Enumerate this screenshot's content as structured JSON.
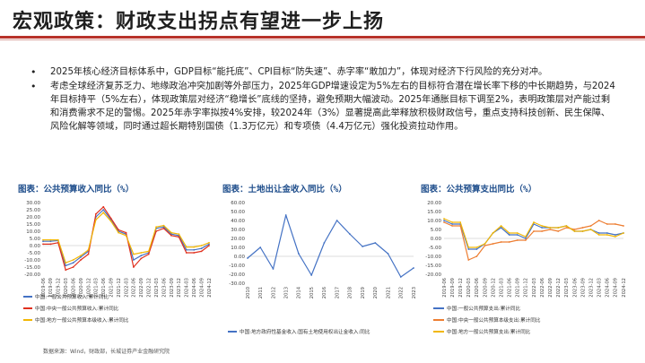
{
  "header": {
    "title": "宏观政策：财政支出拐点有望进一步上扬"
  },
  "bullets": [
    "2025年核心经济目标体系中，GDP目标“能托底”、CPI目标“防失速”、赤字率“敢加力”，体现对经济下行风险的充分对冲。",
    "考虑全球经济复苏乏力、地缘政治冲突加剧等外部压力，2025年GDP增速设定为5%左右的目标符合潜在增长率下移的中长期趋势，与2024年目标持平（5%左右），体现政策层对经济“稳增长”底线的坚持，避免预期大幅波动。2025年通胀目标下调至2%，表明政策层对产能过剩和消费需求不足的警惕。2025年赤字率拟按4%安排，较2024年（3%）显著提高此举释放积极财政信号，重点支持科技创新、民生保障、风险化解等领域，同时通过超长期特别国债（1.3万亿元）和专项债（4.4万亿元）强化投资拉动作用。"
  ],
  "footnote": "数据来源：Wind，财政部，长城证券产业金融研究院",
  "colors": {
    "accent": "#b8322a",
    "blue": "#4472c4",
    "red": "#e0301e",
    "orange": "#ed7d31",
    "yellow": "#f2b705"
  },
  "chart_data": [
    {
      "type": "line",
      "title": "图表：公共预算收入同比（%）",
      "ylim": [
        -20,
        30
      ],
      "y_ticks": [
        "30.00",
        "25.00",
        "20.00",
        "15.00",
        "10.00",
        "5.00",
        "0.00",
        "-5.00",
        "-10.00",
        "-15.00",
        "-20.00"
      ],
      "x_ticks": [
        "2019-06",
        "2019-09",
        "2019-12",
        "2020-03",
        "2020-06",
        "2020-09",
        "2020-12",
        "2021-03",
        "2021-06",
        "2021-09",
        "2021-12",
        "2022-03",
        "2022-06",
        "2022-09",
        "2022-12",
        "2023-03",
        "2023-06",
        "2023-09",
        "2023-12",
        "2024-03",
        "2024-06",
        "2024-09",
        "2024-12"
      ],
      "series": [
        {
          "name": "中国:一般公共预算收入:累计同比",
          "color": "#4472c4",
          "values": [
            3,
            3,
            3.5,
            -14,
            -12,
            -8,
            -4,
            20,
            25,
            18,
            10,
            8,
            -10,
            -7,
            -5,
            12,
            13,
            8,
            7,
            -3,
            -3,
            -2,
            1
          ]
        },
        {
          "name": "中国:中央一般公共预算收入:累计同比",
          "color": "#e0301e",
          "values": [
            1,
            1,
            2,
            -17,
            -15,
            -10,
            -6,
            22,
            27,
            19,
            11,
            9,
            -15,
            -9,
            -6,
            10,
            12,
            7,
            6,
            -5,
            -5,
            -4,
            0
          ]
        },
        {
          "name": "中国:地方一般公共预算本级收入:累计同比",
          "color": "#f2b705",
          "values": [
            4,
            4,
            4,
            -12,
            -10,
            -7,
            -3,
            18,
            23,
            17,
            9,
            7,
            -6,
            -5,
            -4,
            13,
            14,
            9,
            8,
            -1,
            -1,
            0,
            2
          ]
        }
      ]
    },
    {
      "type": "line",
      "title": "图表：土地出让金收入同比（%）",
      "ylim": [
        -30,
        60
      ],
      "y_ticks": [
        "60.00",
        "50.00",
        "40.00",
        "30.00",
        "20.00",
        "10.00",
        "0.00",
        "-10.00",
        "-20.00",
        "-30.00"
      ],
      "x_ticks": [
        "2010",
        "2011",
        "2012",
        "2013",
        "2014",
        "2015",
        "2016",
        "2017",
        "2018",
        "2019",
        "2020",
        "2021",
        "2022",
        "2023"
      ],
      "series": [
        {
          "name": "中国:地方政府性基金收入:国有土地使用权出让金收入:同比",
          "color": "#4472c4",
          "values": [
            -2,
            10,
            -14,
            46,
            3,
            -21,
            15,
            40,
            25,
            11,
            15,
            3,
            -23,
            -13
          ]
        }
      ]
    },
    {
      "type": "line",
      "title": "图表：公共预算支出同比（%）",
      "ylim": [
        -20,
        20
      ],
      "y_ticks": [
        "20.00",
        "15.00",
        "10.00",
        "5.00",
        "0.00",
        "-5.00",
        "-10.00",
        "-15.00",
        "-20.00"
      ],
      "x_ticks": [
        "2019-06",
        "2019-09",
        "2019-12",
        "2020-03",
        "2020-06",
        "2020-09",
        "2020-12",
        "2021-03",
        "2021-06",
        "2021-09",
        "2021-12",
        "2022-03",
        "2022-06",
        "2022-09",
        "2022-12",
        "2023-03",
        "2023-06",
        "2023-09",
        "2023-12",
        "2024-03",
        "2024-06",
        "2024-09",
        "2024-12"
      ],
      "series": [
        {
          "name": "中国:一般公共预算支出:累计同比",
          "color": "#4472c4",
          "values": [
            10,
            8,
            8,
            -6,
            -6,
            -3,
            3,
            6,
            2,
            2,
            0,
            8,
            6,
            6,
            6,
            7,
            4,
            4,
            5,
            3,
            3,
            2,
            3
          ]
        },
        {
          "name": "中国:中央一般公共预算本级支出:累计同比",
          "color": "#ed7d31",
          "values": [
            9,
            7,
            7,
            -12,
            -10,
            -4,
            -3,
            -2,
            -2,
            -1,
            -1,
            4,
            4,
            5,
            4,
            6,
            5,
            6,
            7,
            10,
            8,
            8,
            7
          ]
        },
        {
          "name": "中国:地方一般公共预算支出:累计同比",
          "color": "#f2b705",
          "values": [
            11,
            9,
            9,
            -5,
            -5,
            -3,
            3,
            7,
            3,
            3,
            1,
            9,
            7,
            6,
            6,
            7,
            4,
            4,
            5,
            2,
            2,
            1,
            3
          ]
        }
      ]
    }
  ]
}
